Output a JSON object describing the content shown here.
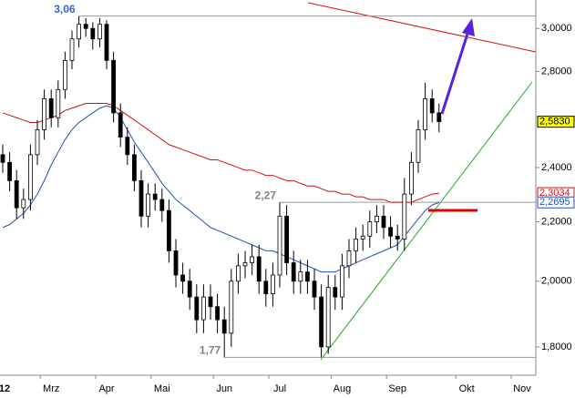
{
  "chart_data": {
    "type": "candlestick",
    "log": true,
    "ylim": [
      1.72,
      3.14
    ],
    "yticks": [
      {
        "value": 1.8,
        "label": "1,8000"
      },
      {
        "value": 2.0,
        "label": "2,0000"
      },
      {
        "value": 2.2,
        "label": "2,2000"
      },
      {
        "value": 2.4,
        "label": "2,4000"
      },
      {
        "value": 2.8,
        "label": "2,8000"
      },
      {
        "value": 3.0,
        "label": "3,0000"
      }
    ],
    "categories": [
      "12",
      null,
      null,
      null,
      null,
      null,
      null,
      "Mrz",
      null,
      null,
      null,
      null,
      null,
      null,
      null,
      "Apr",
      null,
      null,
      null,
      null,
      null,
      null,
      null,
      "Mai",
      null,
      null,
      null,
      null,
      null,
      null,
      null,
      null,
      "Jun",
      null,
      null,
      null,
      null,
      null,
      null,
      null,
      "Jul",
      null,
      null,
      null,
      null,
      null,
      null,
      null,
      null,
      "Aug",
      null,
      null,
      null,
      null,
      null,
      null,
      null,
      "Sep",
      null,
      null,
      null,
      null,
      null,
      null,
      null,
      null,
      null,
      "Okt",
      null,
      null,
      null,
      null,
      null,
      null,
      null,
      "Nov",
      null
    ],
    "open": [
      2.45,
      2.42,
      2.35,
      2.25,
      2.28,
      2.45,
      2.55,
      2.68,
      2.6,
      2.72,
      2.85,
      2.95,
      3.02,
      3.0,
      2.95,
      3.02,
      2.85,
      2.62,
      2.52,
      2.45,
      2.35,
      2.22,
      2.3,
      2.28,
      2.24,
      2.1,
      2.02,
      2.0,
      1.95,
      1.88,
      1.95,
      1.92,
      1.88,
      1.84,
      2.0,
      2.05,
      2.06,
      2.08,
      2.0,
      1.96,
      2.02,
      2.22,
      2.06,
      2.0,
      2.03,
      2.0,
      1.95,
      1.8,
      1.98,
      1.95,
      2.05,
      2.1,
      2.14,
      2.15,
      2.2,
      2.22,
      2.18,
      2.15,
      2.14,
      2.3,
      2.42,
      2.55,
      2.68,
      2.62,
      null,
      null,
      null,
      null,
      null,
      null,
      null,
      null,
      null,
      null,
      null,
      null,
      null
    ],
    "high": [
      2.49,
      2.46,
      2.39,
      2.32,
      2.49,
      2.59,
      2.72,
      2.72,
      2.76,
      2.89,
      2.99,
      3.06,
      3.05,
      3.03,
      3.05,
      3.04,
      2.89,
      2.66,
      2.56,
      2.49,
      2.39,
      2.34,
      2.34,
      2.32,
      2.28,
      2.14,
      2.06,
      2.04,
      1.99,
      1.99,
      1.99,
      1.96,
      1.92,
      2.04,
      2.09,
      2.1,
      2.12,
      2.12,
      2.04,
      2.06,
      2.27,
      2.26,
      2.1,
      2.07,
      2.07,
      2.04,
      1.99,
      2.02,
      2.02,
      2.09,
      2.14,
      2.18,
      2.19,
      2.24,
      2.26,
      2.26,
      2.22,
      2.19,
      2.36,
      2.46,
      2.59,
      2.75,
      2.72,
      2.66,
      null,
      null,
      null,
      null,
      null,
      null,
      null,
      null,
      null,
      null,
      null,
      null,
      null
    ],
    "low": [
      2.38,
      2.31,
      2.21,
      2.21,
      2.24,
      2.41,
      2.51,
      2.56,
      2.56,
      2.68,
      2.81,
      2.91,
      2.96,
      2.9,
      2.91,
      2.81,
      2.58,
      2.48,
      2.41,
      2.31,
      2.18,
      2.18,
      2.24,
      2.2,
      2.06,
      1.98,
      1.96,
      1.91,
      1.84,
      1.84,
      1.88,
      1.84,
      1.77,
      1.8,
      1.96,
      2.01,
      2.02,
      1.96,
      1.92,
      1.92,
      1.98,
      2.02,
      1.96,
      1.96,
      1.96,
      1.91,
      1.77,
      1.78,
      1.91,
      1.91,
      2.01,
      2.06,
      2.1,
      2.11,
      2.16,
      2.14,
      2.11,
      2.1,
      2.1,
      2.26,
      2.38,
      2.51,
      2.58,
      2.54,
      null,
      null,
      null,
      null,
      null,
      null,
      null,
      null,
      null,
      null,
      null,
      null,
      null
    ],
    "close": [
      2.42,
      2.35,
      2.25,
      2.28,
      2.45,
      2.55,
      2.68,
      2.6,
      2.72,
      2.85,
      2.95,
      3.02,
      3.0,
      2.95,
      3.02,
      2.85,
      2.62,
      2.52,
      2.45,
      2.35,
      2.22,
      2.3,
      2.28,
      2.24,
      2.1,
      2.02,
      2.0,
      1.95,
      1.88,
      1.95,
      1.92,
      1.88,
      1.84,
      2.0,
      2.05,
      2.06,
      2.08,
      2.0,
      1.96,
      2.02,
      2.22,
      2.06,
      2.0,
      2.03,
      2.0,
      1.95,
      1.8,
      1.98,
      1.95,
      2.05,
      2.1,
      2.14,
      2.15,
      2.2,
      2.22,
      2.18,
      2.15,
      2.14,
      2.3,
      2.42,
      2.55,
      2.68,
      2.62,
      2.583,
      null,
      null,
      null,
      null,
      null,
      null,
      null,
      null,
      null,
      null,
      null,
      null,
      null
    ],
    "last_value_label": "2,5830",
    "label_fill": "#ffff00",
    "series": [
      {
        "color": "#d01010",
        "last_value_label": "2,3034",
        "values": [
          2.62,
          2.61,
          2.6,
          2.59,
          2.58,
          2.58,
          2.59,
          2.6,
          2.61,
          2.63,
          2.64,
          2.65,
          2.66,
          2.66,
          2.66,
          2.66,
          2.65,
          2.63,
          2.61,
          2.59,
          2.57,
          2.55,
          2.53,
          2.51,
          2.49,
          2.48,
          2.47,
          2.46,
          2.45,
          2.44,
          2.43,
          2.43,
          2.42,
          2.41,
          2.4,
          2.39,
          2.39,
          2.38,
          2.37,
          2.37,
          2.36,
          2.35,
          2.35,
          2.34,
          2.33,
          2.33,
          2.32,
          2.31,
          2.31,
          2.3,
          2.3,
          2.29,
          2.29,
          2.28,
          2.28,
          2.28,
          2.27,
          2.27,
          2.27,
          2.27,
          2.28,
          2.29,
          2.3,
          2.3034,
          null,
          null,
          null,
          null,
          null,
          null,
          null,
          null,
          null,
          null,
          null,
          null,
          null
        ]
      },
      {
        "color": "#2050b0",
        "last_value_label": "2,2695",
        "values": [
          2.18,
          2.19,
          2.21,
          2.23,
          2.26,
          2.3,
          2.35,
          2.41,
          2.46,
          2.51,
          2.55,
          2.58,
          2.6,
          2.62,
          2.64,
          2.65,
          2.64,
          2.6,
          2.55,
          2.5,
          2.46,
          2.42,
          2.38,
          2.34,
          2.31,
          2.28,
          2.26,
          2.24,
          2.22,
          2.2,
          2.18,
          2.17,
          2.16,
          2.15,
          2.14,
          2.13,
          2.12,
          2.11,
          2.1,
          2.1,
          2.09,
          2.08,
          2.07,
          2.06,
          2.05,
          2.04,
          2.03,
          2.03,
          2.03,
          2.04,
          2.05,
          2.06,
          2.07,
          2.08,
          2.09,
          2.1,
          2.11,
          2.12,
          2.15,
          2.18,
          2.21,
          2.24,
          2.26,
          2.2695,
          null,
          null,
          null,
          null,
          null,
          null,
          null,
          null,
          null,
          null,
          null,
          null,
          null
        ]
      }
    ],
    "annotations": [
      {
        "label": "3,06",
        "value": 3.06,
        "color": "#3366cc"
      },
      {
        "label": "2,27",
        "value": 2.27,
        "color": "#808080"
      },
      {
        "label": "1,77",
        "value": 1.77,
        "color": "#808080"
      }
    ]
  }
}
